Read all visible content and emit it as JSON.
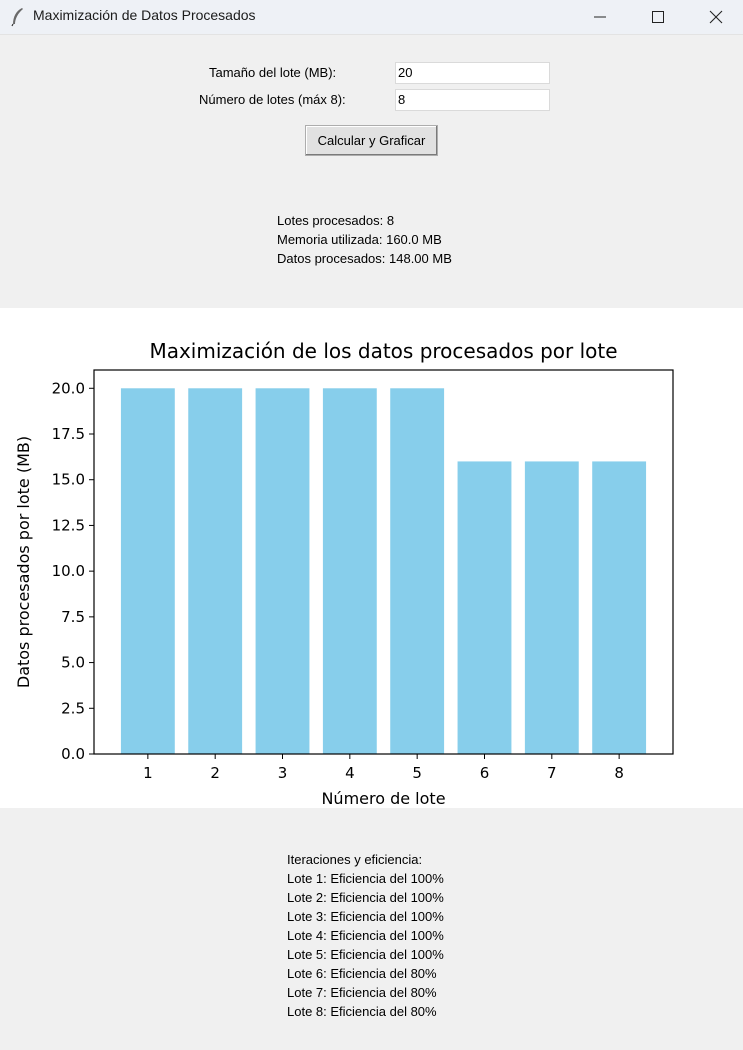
{
  "window": {
    "title": "Maximización de Datos Procesados",
    "controls": [
      "minimize",
      "maximize",
      "close"
    ]
  },
  "form": {
    "batch_size_label": "Tamaño del lote (MB):",
    "batch_size_value": "20",
    "batch_count_label": "Número de lotes (máx 8):",
    "batch_count_value": "8",
    "calculate_button": "Calcular y Graficar"
  },
  "summary": {
    "batches_processed": "Lotes procesados: 8",
    "memory_used": "Memoria utilizada: 160.0 MB",
    "data_processed": "Datos procesados: 148.00 MB"
  },
  "chart_data": {
    "type": "bar",
    "title": "Maximización de los datos procesados por lote",
    "xlabel": "Número de lote",
    "ylabel": "Datos procesados por lote (MB)",
    "categories": [
      "1",
      "2",
      "3",
      "4",
      "5",
      "6",
      "7",
      "8"
    ],
    "values": [
      20,
      20,
      20,
      20,
      20,
      16,
      16,
      16
    ],
    "ylim": [
      0,
      21
    ],
    "yticks": [
      "0.0",
      "2.5",
      "5.0",
      "7.5",
      "10.0",
      "12.5",
      "15.0",
      "17.5",
      "20.0"
    ],
    "bar_color": "#87ceeb",
    "grid": false
  },
  "iterations": {
    "header": "Iteraciones y eficiencia:",
    "lines": [
      "Lote 1: Eficiencia del 100%",
      "Lote 2: Eficiencia del 100%",
      "Lote 3: Eficiencia del 100%",
      "Lote 4: Eficiencia del 100%",
      "Lote 5: Eficiencia del 100%",
      "Lote 6: Eficiencia del 80%",
      "Lote 7: Eficiencia del 80%",
      "Lote 8: Eficiencia del 80%"
    ]
  }
}
